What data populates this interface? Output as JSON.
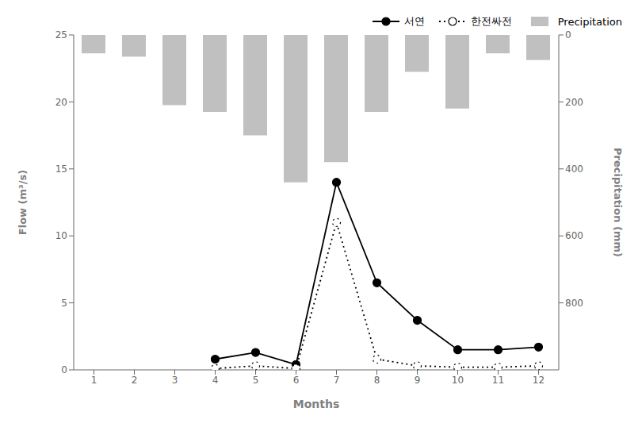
{
  "chart_data": {
    "type": "combo",
    "x": [
      1,
      2,
      3,
      4,
      5,
      6,
      7,
      8,
      9,
      10,
      11,
      12
    ],
    "xlim": [
      0.5,
      12.5
    ],
    "xticks": [
      1,
      2,
      3,
      4,
      5,
      6,
      7,
      8,
      9,
      10,
      11,
      12
    ],
    "x_label": "Months",
    "y_label": "Flow (m³/s)",
    "y2_label": "Precipitation (mm)",
    "ylim": [
      0,
      25
    ],
    "yticks": [
      0,
      5,
      10,
      15,
      20,
      25
    ],
    "y2lim": [
      1000,
      0
    ],
    "y2ticks": [
      0,
      200,
      400,
      600,
      800
    ],
    "grid": false,
    "legend": "upper right",
    "series": [
      {
        "name": "서연",
        "type": "line",
        "color": "black",
        "marker": "circle",
        "line_style": "solid",
        "values": [
          null,
          null,
          null,
          0.8,
          1.3,
          0.4,
          14.0,
          6.5,
          3.7,
          1.5,
          1.5,
          1.7
        ]
      },
      {
        "name": "한전싸전",
        "type": "line",
        "color": "black",
        "marker": "open_circle",
        "line_style": "dotted",
        "values": [
          null,
          null,
          null,
          0.1,
          0.3,
          0.1,
          11.0,
          0.8,
          0.3,
          0.2,
          0.2,
          0.3
        ]
      },
      {
        "name": "Precipitation",
        "type": "bar",
        "axis": "y2",
        "color": "#c0c0c0",
        "values": [
          55,
          65,
          210,
          230,
          300,
          440,
          380,
          230,
          110,
          220,
          55,
          75
        ]
      }
    ]
  }
}
